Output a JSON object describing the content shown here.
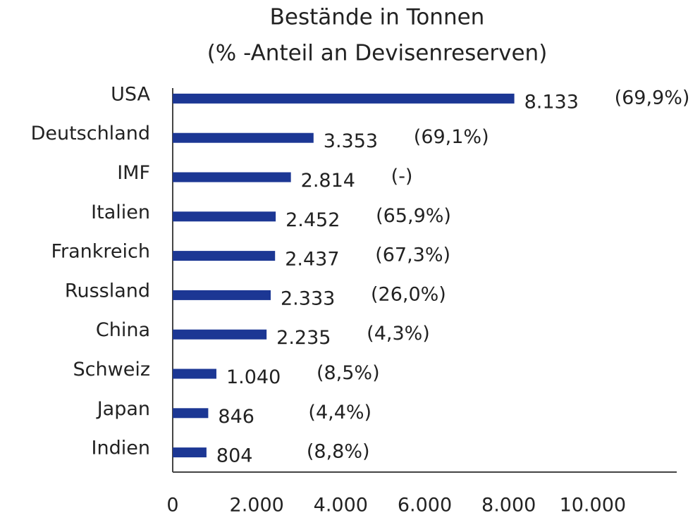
{
  "chart_data": {
    "type": "barh",
    "title": "Bestände in Tonnen",
    "subtitle": "(% -Anteil an Devisenreserven)",
    "categories": [
      "USA",
      "Deutschland",
      "IMF",
      "Italien",
      "Frankreich",
      "Russland",
      "China",
      "Schweiz",
      "Japan",
      "Indien"
    ],
    "values": [
      8133,
      3353,
      2814,
      2452,
      2437,
      2333,
      2235,
      1040,
      846,
      804
    ],
    "value_labels": [
      "8.133",
      "3.353",
      "2.814",
      "2.452",
      "2.437",
      "2.333",
      "2.235",
      "1.040",
      "846",
      "804"
    ],
    "share_labels": [
      "(69,9%)",
      "(69,1%)",
      "(-)",
      "(65,9%)",
      "(67,3%)",
      "(26,0%)",
      "(4,3%)",
      "(8,5%)",
      "(4,4%)",
      "(8,8%)"
    ],
    "color": "#1c3794",
    "xlim": [
      0,
      12000
    ],
    "xticks": [
      0,
      {
        "value": 2000,
        "label": "2.000"
      },
      {
        "value": 4000,
        "label": "4.000"
      },
      {
        "value": 6000,
        "label": "6.000"
      },
      {
        "value": 8000,
        "label": "8.000"
      },
      {
        "value": 10000,
        "label": "10.000"
      }
    ],
    "grid": false
  }
}
